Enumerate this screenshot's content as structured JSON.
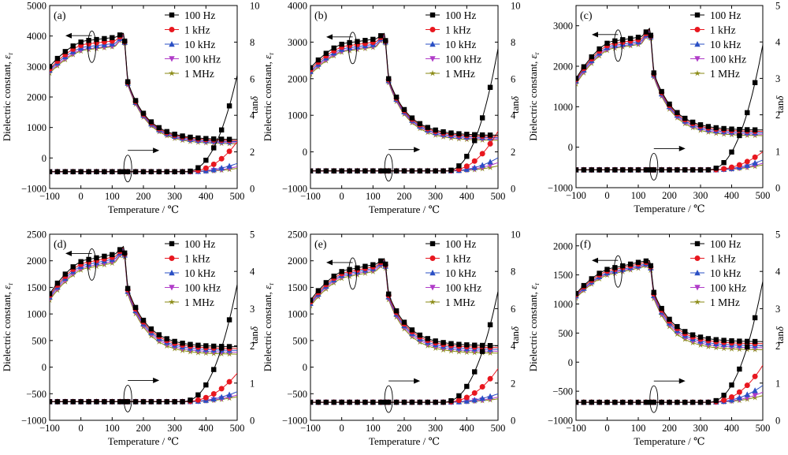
{
  "figure": {
    "x_label": "Temperature / ℃",
    "y_label_left": "Dielectric constant, ",
    "y_label_left_symbol": "ε",
    "y_label_left_subscript": "r",
    "y_label_right": "tan",
    "y_label_right_symbol": "δ"
  },
  "series_style": [
    {
      "name": "100 Hz",
      "color": "#000000",
      "marker": "square"
    },
    {
      "name": "1 kHz",
      "color": "#e8171f",
      "marker": "circle"
    },
    {
      "name": "10 kHz",
      "color": "#2a4fc4",
      "marker": "triangle"
    },
    {
      "name": "100 kHz",
      "color": "#b03cc8",
      "marker": "triangle-down"
    },
    {
      "name": "1 MHz",
      "color": "#8a8a14",
      "marker": "star"
    }
  ],
  "chart_data": [
    {
      "type": "line",
      "panel_label": "(a)",
      "xlim": [
        -100,
        500
      ],
      "ylim": [
        -1000,
        5000
      ],
      "y2lim": [
        0,
        10
      ],
      "x_ticks": [
        -100,
        0,
        100,
        200,
        300,
        400,
        500
      ],
      "y_ticks": [
        -1000,
        0,
        1000,
        2000,
        3000,
        4000,
        5000
      ],
      "y2_ticks": [
        0,
        2,
        4,
        6,
        8,
        10
      ],
      "eps_peak": 4100,
      "eps_hi": 600,
      "eps_start": [
        3000,
        2920,
        2880,
        2830,
        2780
      ],
      "eps_plateau": [
        3850,
        3740,
        3650,
        3580,
        3550
      ],
      "tan_end": [
        5.8,
        1.8,
        0.5,
        0.3,
        0.2
      ],
      "tan_rise_start": 330,
      "tan_axis_value": -450,
      "legend_position": "top-right"
    },
    {
      "type": "line",
      "panel_label": "(b)",
      "xlim": [
        -100,
        500
      ],
      "ylim": [
        -1000,
        4000
      ],
      "y2lim": [
        0,
        10
      ],
      "x_ticks": [
        -100,
        0,
        100,
        200,
        300,
        400,
        500
      ],
      "y_ticks": [
        -1000,
        0,
        1000,
        2000,
        3000,
        4000
      ],
      "y2_ticks": [
        0,
        2,
        4,
        6,
        8,
        10
      ],
      "eps_peak": 3250,
      "eps_hi": 450,
      "eps_start": [
        2300,
        2250,
        2200,
        2160,
        2120
      ],
      "eps_plateau": [
        2980,
        2900,
        2840,
        2790,
        2760
      ],
      "tan_end": [
        7.4,
        2.4,
        0.8,
        0.5,
        0.3
      ],
      "tan_rise_start": 330,
      "tan_axis_value": -520,
      "legend_position": "top-right"
    },
    {
      "type": "line",
      "panel_label": "(c)",
      "xlim": [
        -100,
        500
      ],
      "ylim": [
        -1000,
        3500
      ],
      "y2lim": [
        0,
        5
      ],
      "x_ticks": [
        -100,
        0,
        100,
        200,
        300,
        400,
        500
      ],
      "y_ticks": [
        -1000,
        0,
        1000,
        2000,
        3000
      ],
      "y2_ticks": [
        0,
        1,
        2,
        3,
        4,
        5
      ],
      "eps_peak": 2950,
      "eps_hi": 420,
      "eps_start": [
        1700,
        1670,
        1640,
        1600,
        1560
      ],
      "eps_plateau": [
        2620,
        2560,
        2510,
        2470,
        2440
      ],
      "tan_end": [
        3.8,
        0.55,
        0.3,
        0.2,
        0.15
      ],
      "tan_rise_start": 320,
      "tan_axis_value": -560,
      "legend_position": "top-right"
    },
    {
      "type": "line",
      "panel_label": "(d)",
      "xlim": [
        -100,
        500
      ],
      "ylim": [
        -1000,
        2500
      ],
      "y2lim": [
        0,
        5
      ],
      "x_ticks": [
        -100,
        0,
        100,
        200,
        300,
        400,
        500
      ],
      "y_ticks": [
        -1000,
        -500,
        0,
        500,
        1000,
        1500,
        2000,
        2500
      ],
      "y2_ticks": [
        0,
        1,
        2,
        3,
        4,
        5
      ],
      "eps_peak": 2280,
      "eps_hi": 380,
      "eps_start": [
        1380,
        1350,
        1320,
        1290,
        1260
      ],
      "eps_plateau": [
        2020,
        1970,
        1930,
        1890,
        1860
      ],
      "tan_end": [
        3.5,
        0.85,
        0.3,
        0.2,
        0.15
      ],
      "tan_rise_start": 320,
      "tan_axis_value": -650,
      "legend_position": "top-right"
    },
    {
      "type": "line",
      "panel_label": "(e)",
      "xlim": [
        -100,
        500
      ],
      "ylim": [
        -1000,
        2500
      ],
      "y2lim": [
        0,
        10
      ],
      "x_ticks": [
        -100,
        0,
        100,
        200,
        300,
        400,
        500
      ],
      "y_ticks": [
        -1000,
        -500,
        0,
        500,
        1000,
        1500,
        2000,
        2500
      ],
      "y2_ticks": [
        0,
        2,
        4,
        6,
        8,
        10
      ],
      "eps_peak": 2050,
      "eps_hi": 400,
      "eps_start": [
        1260,
        1230,
        1200,
        1180,
        1150
      ],
      "eps_plateau": [
        1830,
        1790,
        1760,
        1730,
        1700
      ],
      "tan_end": [
        6.6,
        2.0,
        0.5,
        0.3,
        0.2
      ],
      "tan_rise_start": 320,
      "tan_axis_value": -660,
      "legend_position": "top-right"
    },
    {
      "type": "line",
      "panel_label": "(f)",
      "xlim": [
        -100,
        500
      ],
      "ylim": [
        -1000,
        2200
      ],
      "y2lim": [
        0,
        5
      ],
      "x_ticks": [
        -100,
        0,
        100,
        200,
        300,
        400,
        500
      ],
      "y_ticks": [
        -1000,
        -500,
        0,
        500,
        1000,
        1500,
        2000
      ],
      "y2_ticks": [
        0,
        1,
        2,
        3,
        4,
        5
      ],
      "eps_peak": 1750,
      "eps_hi": 350,
      "eps_start": [
        1180,
        1160,
        1140,
        1120,
        1100
      ],
      "eps_plateau": [
        1620,
        1590,
        1560,
        1540,
        1520
      ],
      "tan_end": [
        3.6,
        1.1,
        0.5,
        0.3,
        0.2
      ],
      "tan_rise_start": 320,
      "tan_axis_value": -690,
      "legend_position": "top-right"
    }
  ]
}
